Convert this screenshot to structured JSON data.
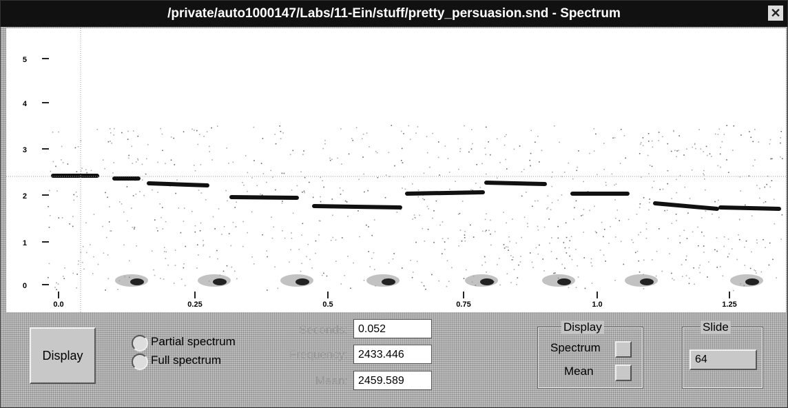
{
  "window": {
    "title": "/private/auto1000147/Labs/11-Ein/stuff/pretty_persuasion.snd - Spectrum"
  },
  "plot": {
    "y_labels": [
      "5",
      "4",
      "3",
      "2",
      "1",
      "0"
    ],
    "x_labels": [
      "0.0",
      "0.25",
      "0.5",
      "0.75",
      "1.0",
      "1.25"
    ]
  },
  "controls": {
    "display_button": "Display",
    "radios": [
      "Partial spectrum",
      "Full spectrum"
    ],
    "fields": [
      {
        "label": "Seconds:",
        "value": "0.052"
      },
      {
        "label": "Frequency:",
        "value": "2433.446"
      },
      {
        "label": "Mean:",
        "value": "2459.589"
      }
    ],
    "display_group": {
      "title": "Display",
      "options": [
        "Spectrum",
        "Mean"
      ]
    },
    "slide": {
      "title": "Slide",
      "value": "64"
    }
  }
}
